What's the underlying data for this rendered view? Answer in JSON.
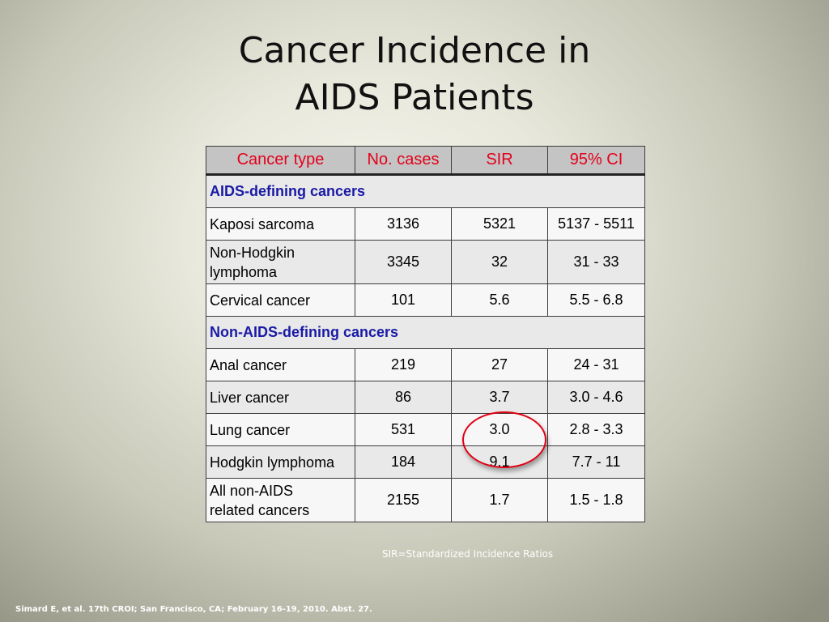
{
  "slide": {
    "title_line1": "Cancer Incidence in",
    "title_line2": "AIDS Patients",
    "footnote": "SIR=Standardized Incidence Ratios",
    "citation": "Simard E, et al. 17th CROI; San Francisco, CA; February 16-19, 2010. Abst. 27."
  },
  "table": {
    "headers": [
      "Cancer type",
      "No. cases",
      "SIR",
      "95% CI"
    ],
    "sections": [
      {
        "label": "AIDS-defining cancers",
        "rows": [
          {
            "name_line1": "Kaposi sarcoma",
            "name_line2": "",
            "cases": "3136",
            "sir": "5321",
            "ci": "5137 - 5511"
          },
          {
            "name_line1": "Non-Hodgkin",
            "name_line2": "lymphoma",
            "cases": "3345",
            "sir": "32",
            "ci": "31 - 33"
          },
          {
            "name_line1": "Cervical cancer",
            "name_line2": "",
            "cases": "101",
            "sir": "5.6",
            "ci": "5.5 - 6.8"
          }
        ]
      },
      {
        "label": "Non-AIDS-defining cancers",
        "rows": [
          {
            "name_line1": "Anal cancer",
            "name_line2": "",
            "cases": "219",
            "sir": "27",
            "ci": "24 - 31"
          },
          {
            "name_line1": "Liver cancer",
            "name_line2": "",
            "cases": "86",
            "sir": "3.7",
            "ci": "3.0 - 4.6"
          },
          {
            "name_line1": "Lung cancer",
            "name_line2": "",
            "cases": "531",
            "sir": "3.0",
            "ci": "2.8 - 3.3"
          },
          {
            "name_line1": "Hodgkin lymphoma",
            "name_line2": "",
            "cases": "184",
            "sir": "9.1",
            "ci": "7.7 - 11"
          },
          {
            "name_line1": "All non-AIDS",
            "name_line2": "related cancers",
            "cases": "2155",
            "sir": "1.7",
            "ci": "1.5 - 1.8"
          }
        ]
      }
    ]
  },
  "colors": {
    "header_text": "#e4001b",
    "section_text": "#1a1aa6",
    "highlight_circle": "#e00012"
  }
}
